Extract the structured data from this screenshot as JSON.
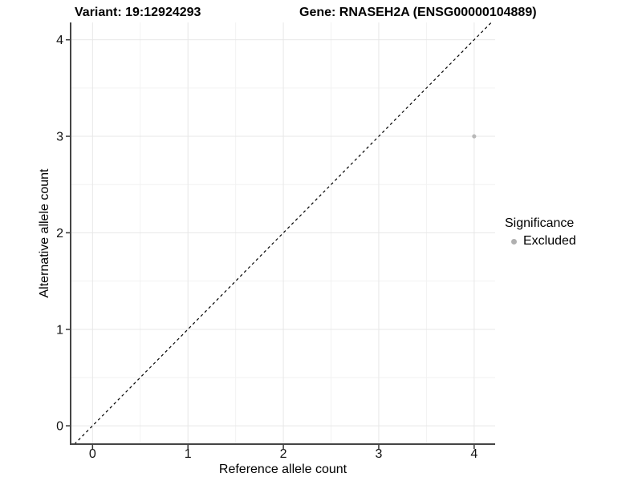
{
  "page": {
    "background": "#ffffff"
  },
  "chart_data": {
    "type": "scatter",
    "titles": {
      "left": "Variant: 19:12924293",
      "right": "Gene: RNASEH2A (ENSG00000104889)"
    },
    "xlabel": "Reference allele count",
    "ylabel": "Alternative allele count",
    "xlim": [
      -0.23,
      4.22
    ],
    "ylim": [
      -0.19,
      4.18
    ],
    "xticks": [
      0,
      1,
      2,
      3,
      4
    ],
    "yticks": [
      0,
      1,
      2,
      3,
      4
    ],
    "grid": {
      "major": true,
      "minor": true
    },
    "reference_line": {
      "type": "identity",
      "style": "dashed",
      "color": "#000000"
    },
    "series": [
      {
        "name": "Excluded",
        "color": "#b9b9b9",
        "marker": "circle",
        "points": [
          {
            "x": 4,
            "y": 3
          }
        ]
      }
    ],
    "legend": {
      "title": "Significance",
      "position": "right",
      "items": [
        {
          "label": "Excluded",
          "color": "#b0b0b0"
        }
      ]
    },
    "colors": {
      "grid_major": "#e7e7e7",
      "grid_minor": "#f2f2f2",
      "axis_line": "#454545",
      "tick": "#333333",
      "tick_label": "#111111",
      "text": "#000000",
      "background": "#ffffff"
    }
  }
}
